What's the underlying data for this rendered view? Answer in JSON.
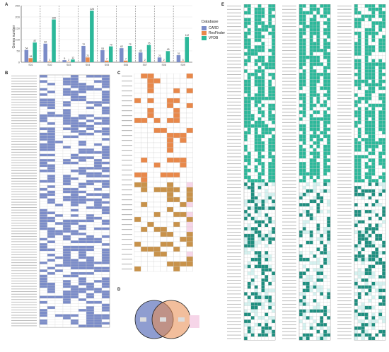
{
  "panels": {
    "a": "A",
    "b": "B",
    "c": "C",
    "d": "D",
    "e": "E"
  },
  "colors": {
    "card": "#7b8cc8",
    "resfinder": "#e8884a",
    "vfdb": "#2cb89a",
    "vfdb_dark": "#1f8f80",
    "vfdb_light": "#d4f1ef",
    "gold": "#c8924a",
    "pink": "#f6d5e8"
  },
  "chart_data": [
    {
      "type": "bar",
      "title": "",
      "xlabel": "",
      "ylabel": "Genes number",
      "categories": [
        "S01",
        "S02",
        "S03",
        "S04",
        "S05",
        "S06",
        "S07",
        "S08",
        "S09"
      ],
      "ylim": [
        0,
        250
      ],
      "yticks": [
        0,
        50,
        100,
        150,
        200,
        250
      ],
      "legend_title": "Database",
      "legend_position": "right",
      "series": [
        {
          "name": "CARD",
          "values": [
            54,
            82,
            9,
            72,
            53,
            62,
            43,
            21,
            31
          ]
        },
        {
          "name": "ResFinder",
          "values": [
            18,
            3,
            2,
            21,
            7,
            7,
            2,
            2,
            3
          ]
        },
        {
          "name": "VFDB",
          "values": [
            87,
            189,
            12,
            228,
            70,
            72,
            76,
            49,
            112
          ]
        }
      ]
    }
  ]
}
